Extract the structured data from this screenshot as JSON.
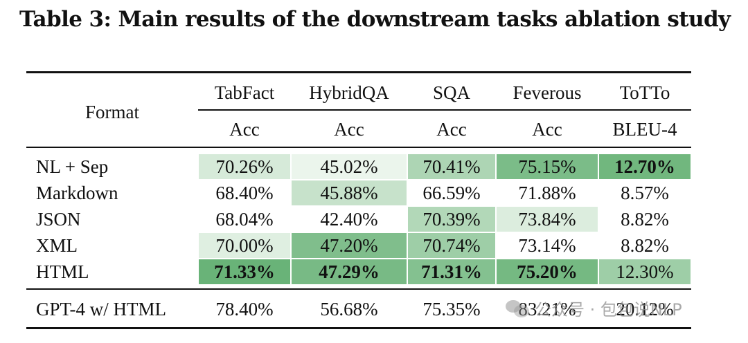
{
  "caption": "Table 3: Main results of the downstream tasks ablation study",
  "table": {
    "format_header": "Format",
    "columns": [
      {
        "task": "TabFact",
        "metric": "Acc"
      },
      {
        "task": "HybridQA",
        "metric": "Acc"
      },
      {
        "task": "SQA",
        "metric": "Acc"
      },
      {
        "task": "Feverous",
        "metric": "Acc"
      },
      {
        "task": "ToTTo",
        "metric": "BLEU-4"
      }
    ],
    "rows": [
      {
        "format": "NL + Sep",
        "values": [
          "70.26%",
          "45.02%",
          "70.41%",
          "75.15%",
          "12.70%"
        ],
        "shades": [
          0.18,
          0.04,
          0.45,
          0.78,
          0.85
        ],
        "bold": [
          false,
          false,
          false,
          false,
          true
        ]
      },
      {
        "format": "Markdown",
        "values": [
          "68.40%",
          "45.88%",
          "66.59%",
          "71.88%",
          "8.57%"
        ],
        "shades": [
          0.0,
          0.28,
          0.0,
          0.0,
          0.0
        ],
        "bold": [
          false,
          false,
          false,
          false,
          false
        ]
      },
      {
        "format": "JSON",
        "values": [
          "68.04%",
          "42.40%",
          "70.39%",
          "73.84%",
          "8.82%"
        ],
        "shades": [
          0.0,
          0.0,
          0.42,
          0.14,
          0.0
        ],
        "bold": [
          false,
          false,
          false,
          false,
          false
        ]
      },
      {
        "format": "XML",
        "values": [
          "70.00%",
          "47.20%",
          "70.74%",
          "73.14%",
          "8.82%"
        ],
        "shades": [
          0.12,
          0.75,
          0.55,
          0.0,
          0.0
        ],
        "bold": [
          false,
          false,
          false,
          false,
          false
        ]
      },
      {
        "format": "HTML",
        "values": [
          "71.33%",
          "47.29%",
          "71.31%",
          "75.20%",
          "12.30%"
        ],
        "shades": [
          0.9,
          0.8,
          0.72,
          0.82,
          0.55
        ],
        "bold": [
          true,
          true,
          true,
          true,
          false
        ]
      }
    ],
    "baseline": {
      "format": "GPT-4 w/ HTML",
      "values": [
        "78.40%",
        "56.68%",
        "75.35%",
        "83.21%",
        "20.12%"
      ]
    }
  },
  "watermark": "公众号 · 包包说NLP",
  "colors": {
    "shade_max": "#5aab6a",
    "shade_min": "#f1f8f1"
  }
}
